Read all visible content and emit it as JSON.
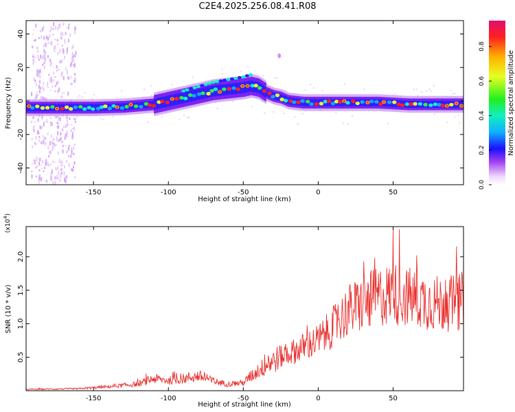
{
  "title": "C2E4.2025.256.08.41.R08",
  "colors": {
    "line": "#e8302e",
    "background": "#ffffff",
    "colormap": [
      "#ffffff",
      "#e8c8f8",
      "#b060e8",
      "#6a18f0",
      "#1a22ff",
      "#18c8f0",
      "#20f060",
      "#f0ff20",
      "#ffa000",
      "#ff2020",
      "#e01060"
    ]
  },
  "chart_data": [
    {
      "type": "heatmap",
      "title": "",
      "xlabel": "Height of straight line (km)",
      "ylabel": "Frequency (Hz)",
      "xlim": [
        -195,
        97
      ],
      "ylim": [
        -50,
        48
      ],
      "xticks": [
        -150,
        -100,
        -50,
        0,
        50
      ],
      "yticks": [
        -40,
        -20,
        0,
        20,
        40
      ],
      "colorbar": {
        "label": "Normalized spectral amplitude",
        "range": [
          0.0,
          0.95
        ],
        "ticks": [
          "0.0",
          "0.2",
          "0.4",
          "0.6",
          "0.8"
        ],
        "tick_values": [
          0.0,
          0.2,
          0.4,
          0.6,
          0.8
        ]
      },
      "ridge": {
        "description_points_x": [
          -195,
          -175,
          -150,
          -130,
          -110,
          -100,
          -90,
          -80,
          -70,
          -60,
          -50,
          -45,
          -40,
          -35,
          -30,
          -25,
          -20,
          -10,
          0,
          20,
          40,
          60,
          80,
          97
        ],
        "frequency_hz": [
          -4,
          -4,
          -4,
          -3.5,
          -2,
          0,
          2,
          4,
          6,
          7,
          8,
          9,
          8,
          5,
          3,
          2,
          0,
          -1,
          -1,
          -1,
          -1,
          -2,
          -2,
          -2
        ]
      },
      "grid": false,
      "legend": "none"
    },
    {
      "type": "line",
      "title": "",
      "xlabel": "Height of straight line (km)",
      "ylabel": "SNR (10 * v/v)",
      "y_multiplier": "(x10^4)",
      "xlim": [
        -195,
        97
      ],
      "ylim": [
        0,
        2.45
      ],
      "xticks": [
        -150,
        -100,
        -50,
        0,
        50
      ],
      "yticks": [
        0.5,
        1.0,
        1.5,
        2.0
      ],
      "ytick_labels": [
        "0.5",
        "1.0",
        "1.5",
        "2.0"
      ],
      "envelope": {
        "x": [
          -195,
          -160,
          -140,
          -120,
          -110,
          -100,
          -90,
          -80,
          -70,
          -60,
          -50,
          -40,
          -30,
          -20,
          -10,
          0,
          10,
          20,
          30,
          40,
          50,
          60,
          70,
          80,
          90,
          97
        ],
        "y": [
          0.02,
          0.03,
          0.06,
          0.1,
          0.18,
          0.15,
          0.18,
          0.22,
          0.14,
          0.1,
          0.12,
          0.3,
          0.45,
          0.55,
          0.65,
          0.75,
          0.95,
          1.2,
          1.3,
          1.4,
          1.45,
          1.4,
          1.35,
          1.3,
          1.3,
          1.35
        ],
        "peak": {
          "x": 50,
          "y": 2.4
        }
      },
      "grid": false,
      "legend": "none"
    }
  ]
}
